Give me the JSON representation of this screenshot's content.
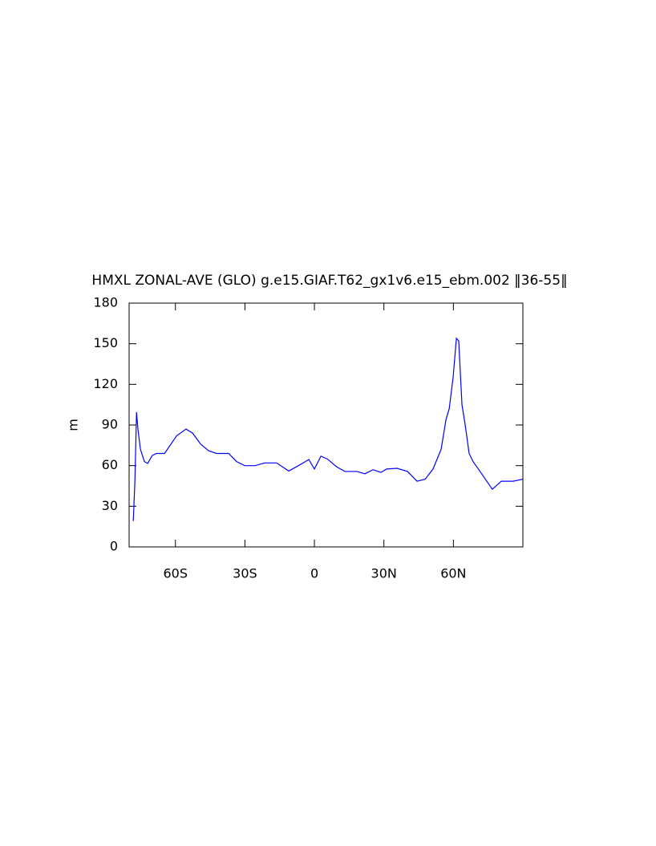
{
  "chart_data": {
    "type": "line",
    "title": "HMXL ZONAL-AVE (GLO) g.e15.GIAF.T62_gx1v6.e15_ebm.002 ‖36-55‖",
    "y_label": "m",
    "x": [
      -78.2,
      -77.5,
      -76.8,
      -76.2,
      -75.1,
      -73.4,
      -72,
      -70,
      -68.2,
      -64.7,
      -62.3,
      -59.5,
      -55.4,
      -52.6,
      -49.2,
      -45.7,
      -42.2,
      -37,
      -33.6,
      -30.1,
      -25.6,
      -21.5,
      -16.3,
      -11.1,
      -6.9,
      -2.4,
      0,
      2.8,
      5.5,
      9.7,
      13.2,
      18.3,
      21.8,
      25.3,
      28.7,
      31.2,
      35.7,
      40.2,
      44.3,
      47.8,
      51.2,
      54.7,
      56.8,
      58.2,
      59.9,
      61.3,
      62.3,
      63.7,
      65.1,
      66.8,
      68.5,
      72,
      74.4,
      76.8,
      80.7,
      85.8,
      90
    ],
    "series": [
      {
        "name": "HMXL",
        "color": "#0000ff",
        "values": [
          19,
          48.5,
          99.5,
          87,
          72,
          63,
          61.6,
          67.5,
          69,
          69,
          75,
          82,
          87,
          84,
          76,
          71,
          69,
          69,
          63,
          60,
          60,
          62,
          62,
          56,
          60,
          64.5,
          57.5,
          67,
          65,
          59,
          55.7,
          55.7,
          54,
          57,
          55,
          57.5,
          58,
          55.7,
          48.5,
          50,
          57.5,
          72,
          94,
          102,
          125.5,
          154,
          152,
          105,
          90,
          69,
          63,
          54.5,
          48.5,
          42.6,
          48.5,
          48.5,
          50
        ]
      }
    ],
    "xlim": [
      -80,
      90
    ],
    "xticks": [
      {
        "value": -60,
        "label": "60S"
      },
      {
        "value": -30,
        "label": "30S"
      },
      0,
      {
        "value": 30,
        "label": "30N"
      },
      {
        "value": 60,
        "label": "60N"
      }
    ],
    "ylim": [
      0,
      180
    ],
    "yticks": [
      0,
      30,
      60,
      90,
      120,
      150,
      180
    ]
  }
}
